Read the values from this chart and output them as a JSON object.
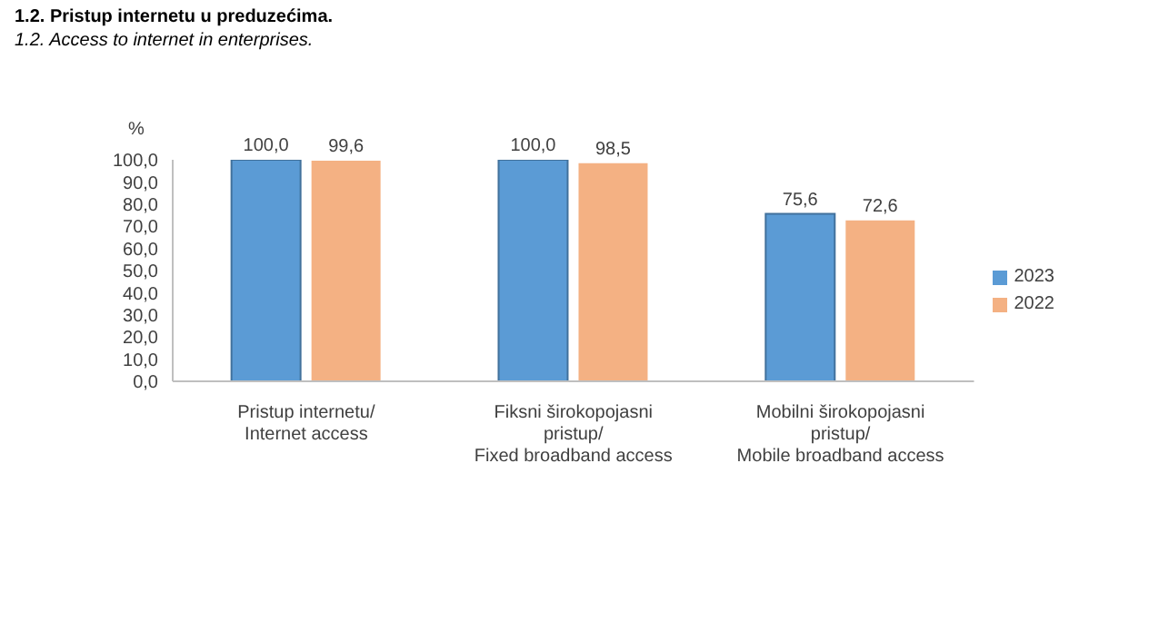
{
  "chart_data": {
    "type": "bar",
    "title": "1.2. Pristup internetu u preduzećima.",
    "subtitle": "1.2. Access to internet in enterprises.",
    "ylabel": "%",
    "categories": [
      "Pristup internetu/\nInternet access",
      "Fiksni širokopojasni\npristup/\nFixed broadband access",
      "Mobilni širokopojasni\npristup/\nMobile broadband access"
    ],
    "series": [
      {
        "name": "2023",
        "color": "#5b9bd5",
        "values": [
          100.0,
          100.0,
          75.6
        ],
        "value_labels": [
          "100,0",
          "100,0",
          "75,6"
        ]
      },
      {
        "name": "2022",
        "color": "#f4b183",
        "values": [
          99.6,
          98.5,
          72.6
        ],
        "value_labels": [
          "99,6",
          "98,5",
          "72,6"
        ]
      }
    ],
    "ylim": [
      0,
      100
    ],
    "yticks": [
      {
        "value": 0,
        "label": "0,0"
      },
      {
        "value": 10,
        "label": "10,0"
      },
      {
        "value": 20,
        "label": "20,0"
      },
      {
        "value": 30,
        "label": "30,0"
      },
      {
        "value": 40,
        "label": "40,0"
      },
      {
        "value": 50,
        "label": "50,0"
      },
      {
        "value": 60,
        "label": "60,0"
      },
      {
        "value": 70,
        "label": "70,0"
      },
      {
        "value": 80,
        "label": "80,0"
      },
      {
        "value": 90,
        "label": "90,0"
      },
      {
        "value": 100,
        "label": "100,0"
      }
    ],
    "grid": false,
    "legend": "right"
  }
}
